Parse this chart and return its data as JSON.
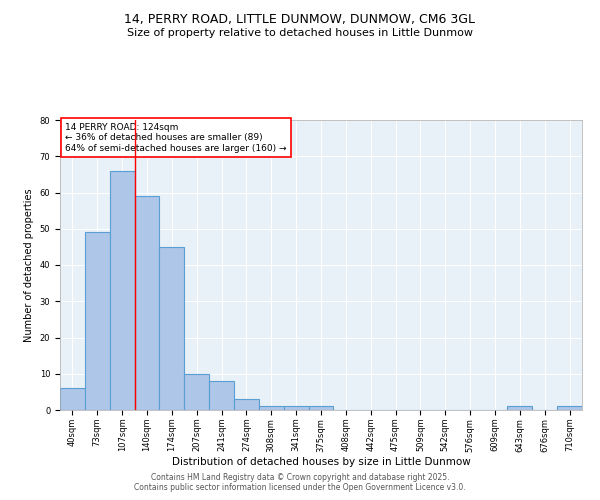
{
  "title1": "14, PERRY ROAD, LITTLE DUNMOW, DUNMOW, CM6 3GL",
  "title2": "Size of property relative to detached houses in Little Dunmow",
  "xlabel": "Distribution of detached houses by size in Little Dunmow",
  "ylabel": "Number of detached properties",
  "bin_labels": [
    "40sqm",
    "73sqm",
    "107sqm",
    "140sqm",
    "174sqm",
    "207sqm",
    "241sqm",
    "274sqm",
    "308sqm",
    "341sqm",
    "375sqm",
    "408sqm",
    "442sqm",
    "475sqm",
    "509sqm",
    "542sqm",
    "576sqm",
    "609sqm",
    "643sqm",
    "676sqm",
    "710sqm"
  ],
  "bar_values": [
    6,
    49,
    66,
    59,
    45,
    10,
    8,
    3,
    1,
    1,
    1,
    0,
    0,
    0,
    0,
    0,
    0,
    0,
    1,
    0,
    1
  ],
  "bar_color": "#aec6e8",
  "bar_edge_color": "#5a9fd4",
  "bar_linewidth": 0.8,
  "annotation_title": "14 PERRY ROAD: 124sqm",
  "annotation_line2": "← 36% of detached houses are smaller (89)",
  "annotation_line3": "64% of semi-detached houses are larger (160) →",
  "annotation_box_color": "white",
  "annotation_border_color": "red",
  "red_line_x": 2.5,
  "ylim": [
    0,
    80
  ],
  "yticks": [
    0,
    10,
    20,
    30,
    40,
    50,
    60,
    70,
    80
  ],
  "background_color": "#e8f0f8",
  "footer1": "Contains HM Land Registry data © Crown copyright and database right 2025.",
  "footer2": "Contains public sector information licensed under the Open Government Licence v3.0.",
  "title_fontsize": 9,
  "subtitle_fontsize": 8,
  "axis_label_fontsize": 7.5,
  "tick_fontsize": 6,
  "annotation_fontsize": 6.5,
  "footer_fontsize": 5.5,
  "ylabel_fontsize": 7
}
